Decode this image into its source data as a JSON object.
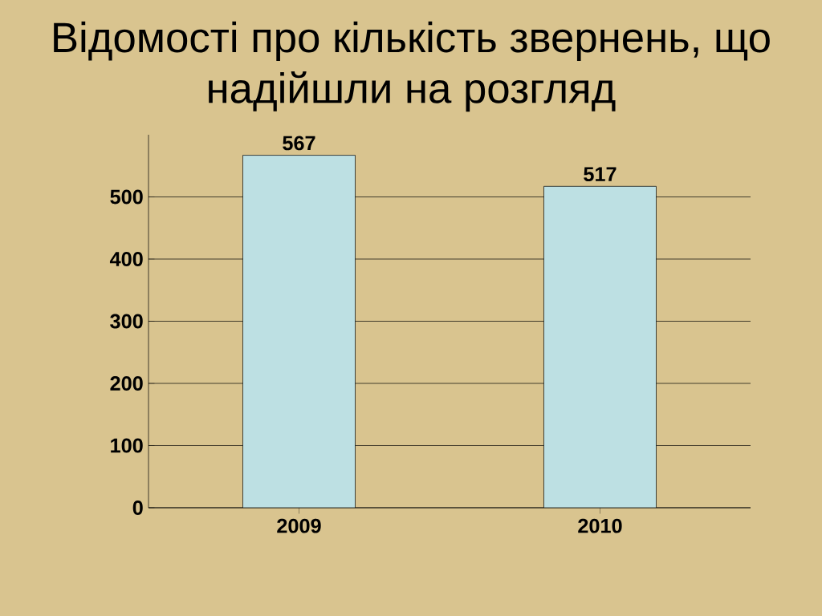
{
  "chart_data": {
    "type": "bar",
    "title": "Відомості про кількість звернень, що надійшли на розгляд",
    "categories": [
      "2009",
      "2010"
    ],
    "values": [
      567,
      517
    ],
    "value_labels": [
      "567",
      "517"
    ],
    "color": "#bde0e3",
    "ylim": [
      0,
      600
    ],
    "yticks": [
      0,
      100,
      200,
      300,
      400,
      500
    ],
    "grid": "y"
  }
}
